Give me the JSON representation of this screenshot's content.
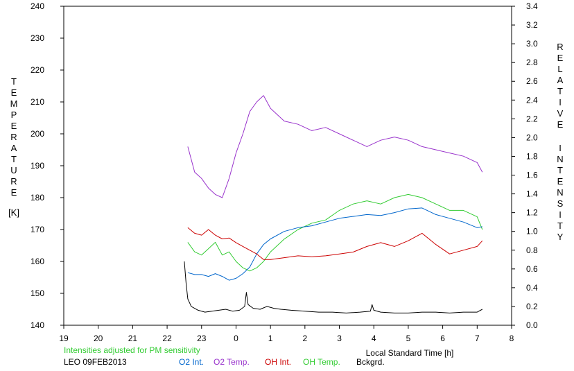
{
  "chart_data": {
    "type": "line",
    "xlabel": "Local Standard Time [h]",
    "xlim": [
      19,
      32
    ],
    "x_ticks": [
      "19",
      "20",
      "21",
      "22",
      "23",
      "0",
      "1",
      "2",
      "3",
      "4",
      "5",
      "6",
      "7",
      "8"
    ],
    "ylabel_left": "TEMPERATURE",
    "ylabel_left_unit": "[K]",
    "ylim_left": [
      140,
      240
    ],
    "y_ticks_left": [
      "140",
      "150",
      "160",
      "170",
      "180",
      "190",
      "200",
      "210",
      "220",
      "230",
      "240"
    ],
    "ylabel_right_words": [
      "RELATIVE",
      "INTENSITY"
    ],
    "ylim_right": [
      0.0,
      3.4
    ],
    "y_ticks_right": [
      "0.0",
      "0.2",
      "0.4",
      "0.6",
      "0.8",
      "1.0",
      "1.2",
      "1.4",
      "1.6",
      "1.8",
      "2.0",
      "2.2",
      "2.4",
      "2.6",
      "2.8",
      "3.0",
      "3.2",
      "3.4"
    ],
    "grid": false,
    "note": "Intensities adjusted for PM sensitivity",
    "site_date": "LEO 09FEB2013",
    "colors": {
      "o2_int": "#0066cc",
      "o2_temp": "#9933cc",
      "oh_int": "#cc0000",
      "oh_temp": "#33cc33",
      "bckgrd": "#000000",
      "note": "#33cc33"
    },
    "series": [
      {
        "name": "O2 Int.",
        "axis": "right",
        "color": "#0066cc",
        "x": [
          22.6,
          22.8,
          23.0,
          23.2,
          23.4,
          23.6,
          23.8,
          24.0,
          24.2,
          24.4,
          24.6,
          24.8,
          25.0,
          25.4,
          25.8,
          26.2,
          26.6,
          27.0,
          27.4,
          27.8,
          28.2,
          28.6,
          29.0,
          29.4,
          29.8,
          30.2,
          30.6,
          31.0,
          31.15
        ],
        "y": [
          0.56,
          0.54,
          0.54,
          0.52,
          0.55,
          0.52,
          0.48,
          0.5,
          0.55,
          0.62,
          0.76,
          0.86,
          0.92,
          1.0,
          1.04,
          1.06,
          1.1,
          1.14,
          1.16,
          1.18,
          1.17,
          1.2,
          1.24,
          1.25,
          1.18,
          1.14,
          1.1,
          1.04,
          1.05
        ]
      },
      {
        "name": "O2 Temp.",
        "axis": "left",
        "color": "#9933cc",
        "x": [
          22.6,
          22.8,
          23.0,
          23.2,
          23.4,
          23.6,
          23.8,
          24.0,
          24.2,
          24.4,
          24.6,
          24.8,
          25.0,
          25.4,
          25.8,
          26.2,
          26.6,
          27.0,
          27.4,
          27.8,
          28.2,
          28.6,
          29.0,
          29.4,
          29.8,
          30.2,
          30.6,
          31.0,
          31.15
        ],
        "y": [
          196,
          188,
          186,
          183,
          181,
          180,
          186,
          194,
          200,
          207,
          210,
          212,
          208,
          204,
          203,
          201,
          202,
          200,
          198,
          196,
          198,
          199,
          198,
          196,
          195,
          194,
          193,
          191,
          188
        ]
      },
      {
        "name": "OH Int.",
        "axis": "right",
        "color": "#cc0000",
        "x": [
          22.6,
          22.8,
          23.0,
          23.2,
          23.4,
          23.6,
          23.8,
          24.0,
          24.2,
          24.4,
          24.6,
          24.8,
          25.0,
          25.4,
          25.8,
          26.2,
          26.6,
          27.0,
          27.4,
          27.8,
          28.2,
          28.6,
          29.0,
          29.4,
          29.8,
          30.2,
          30.6,
          31.0,
          31.15
        ],
        "y": [
          1.04,
          0.98,
          0.96,
          1.02,
          0.96,
          0.92,
          0.93,
          0.88,
          0.84,
          0.8,
          0.76,
          0.7,
          0.7,
          0.72,
          0.74,
          0.73,
          0.74,
          0.76,
          0.78,
          0.84,
          0.88,
          0.84,
          0.9,
          0.98,
          0.86,
          0.76,
          0.8,
          0.84,
          0.9
        ]
      },
      {
        "name": "OH Temp.",
        "axis": "left",
        "color": "#33cc33",
        "x": [
          22.6,
          22.8,
          23.0,
          23.2,
          23.4,
          23.6,
          23.8,
          24.0,
          24.2,
          24.4,
          24.6,
          24.8,
          25.0,
          25.4,
          25.8,
          26.2,
          26.6,
          27.0,
          27.4,
          27.8,
          28.2,
          28.6,
          29.0,
          29.4,
          29.8,
          30.2,
          30.6,
          31.0,
          31.15
        ],
        "y": [
          166,
          163,
          162,
          164,
          166,
          162,
          163,
          160,
          158,
          157,
          158,
          160,
          163,
          167,
          170,
          172,
          173,
          176,
          178,
          179,
          178,
          180,
          181,
          180,
          178,
          176,
          176,
          174,
          170
        ]
      },
      {
        "name": "Bckgrd.",
        "axis": "right",
        "color": "#000000",
        "x": [
          22.5,
          22.55,
          22.6,
          22.7,
          22.9,
          23.1,
          23.3,
          23.5,
          23.7,
          23.9,
          24.1,
          24.25,
          24.3,
          24.35,
          24.5,
          24.7,
          24.9,
          25.1,
          25.3,
          25.6,
          26.0,
          26.4,
          26.8,
          27.2,
          27.6,
          27.9,
          27.95,
          28.0,
          28.2,
          28.6,
          29.0,
          29.4,
          29.8,
          30.2,
          30.6,
          31.0,
          31.15
        ],
        "y": [
          0.68,
          0.45,
          0.28,
          0.2,
          0.16,
          0.14,
          0.15,
          0.16,
          0.17,
          0.15,
          0.16,
          0.2,
          0.35,
          0.22,
          0.18,
          0.17,
          0.2,
          0.18,
          0.17,
          0.16,
          0.15,
          0.14,
          0.14,
          0.13,
          0.14,
          0.15,
          0.22,
          0.16,
          0.14,
          0.13,
          0.13,
          0.14,
          0.14,
          0.13,
          0.14,
          0.14,
          0.17
        ]
      }
    ]
  }
}
